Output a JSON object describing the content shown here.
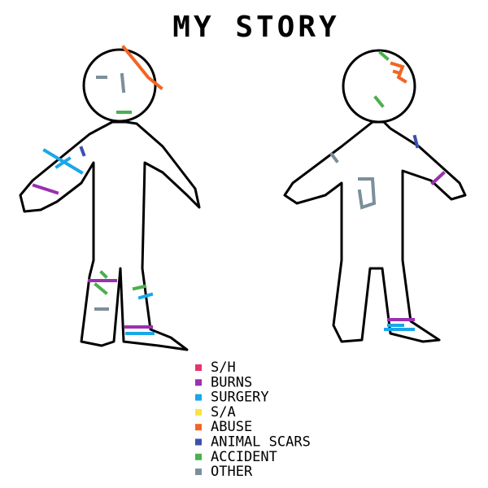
{
  "title": "MY STORY",
  "legend": [
    {
      "label": "S/H",
      "color": "#e8336b"
    },
    {
      "label": "BURNS",
      "color": "#9b30b0"
    },
    {
      "label": "SURGERY",
      "color": "#1aa7e8"
    },
    {
      "label": "S/A",
      "color": "#f5e642"
    },
    {
      "label": "ABUSE",
      "color": "#f26522"
    },
    {
      "label": "ANIMAL SCARS",
      "color": "#3b4fb0"
    },
    {
      "label": "ACCIDENT",
      "color": "#4caf50"
    },
    {
      "label": "OTHER",
      "color": "#7a8f99"
    }
  ]
}
